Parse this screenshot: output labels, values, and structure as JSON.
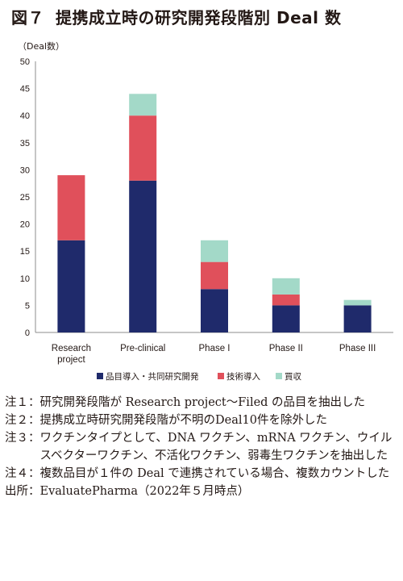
{
  "figure": {
    "number": "図７",
    "title": "提携成立時の研究開発段階別 Deal 数"
  },
  "chart_data": {
    "type": "bar",
    "stacked": true,
    "y_unit_label": "（Deal数）",
    "ylim": [
      0,
      50
    ],
    "yticks": [
      0,
      5,
      10,
      15,
      20,
      25,
      30,
      35,
      40,
      45,
      50
    ],
    "grid": false,
    "legend_position": "bottom",
    "categories": [
      "Research project",
      "Pre-clinical",
      "Phase I",
      "Phase II",
      "Phase III"
    ],
    "category_lines": [
      [
        "Research",
        "project"
      ],
      [
        "Pre-clinical"
      ],
      [
        "Phase I"
      ],
      [
        "Phase II"
      ],
      [
        "Phase III"
      ]
    ],
    "series": [
      {
        "name": "品目導入・共同研究開発",
        "color": "#1f2a6b",
        "values": [
          17,
          28,
          8,
          5,
          5
        ]
      },
      {
        "name": "技術導入",
        "color": "#e0505b",
        "values": [
          12,
          12,
          5,
          2,
          0
        ]
      },
      {
        "name": "買収",
        "color": "#a3d9c8",
        "values": [
          0,
          4,
          4,
          3,
          1
        ]
      }
    ]
  },
  "notes": [
    {
      "label": "注１：",
      "text": "研究開発段階が Research project～Filed の品目を抽出した"
    },
    {
      "label": "注２：",
      "text": "提携成立時研究開発段階が不明のDeal10件を除外した"
    },
    {
      "label": "注３：",
      "text": "ワクチンタイプとして、DNA ワクチン、mRNA ワクチン、ウイルスベクターワクチン、不活化ワクチン、弱毒生ワクチンを抽出した"
    },
    {
      "label": "注４：",
      "text": "複数品目が１件の Deal で連携されている場合、複数カウントした"
    },
    {
      "label": "出所：",
      "text": "EvaluatePharma（2022年５月時点）"
    }
  ]
}
